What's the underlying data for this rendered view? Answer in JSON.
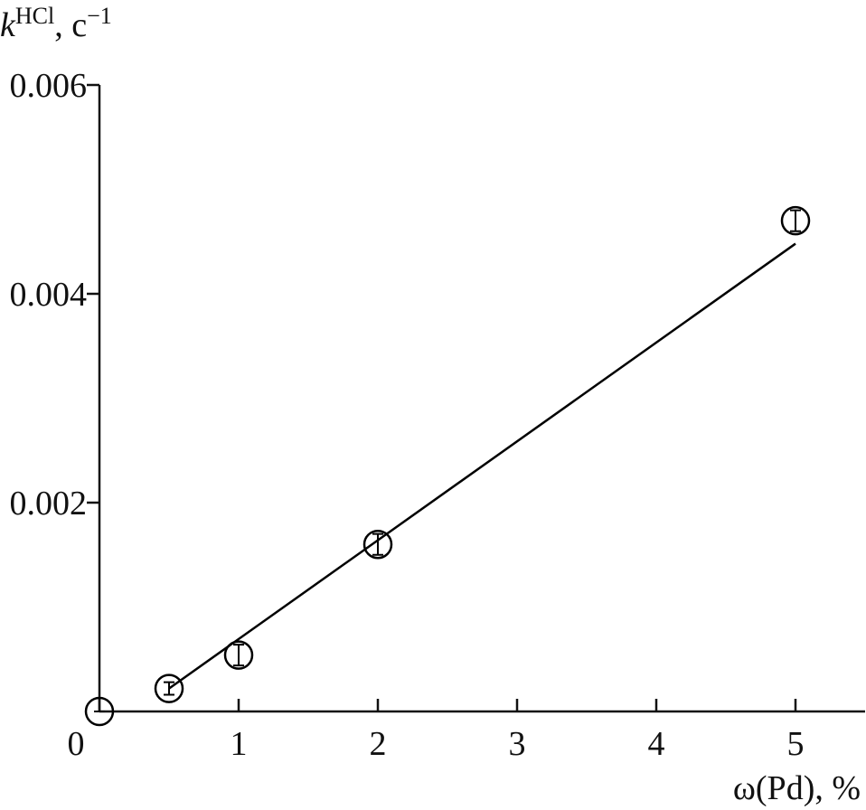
{
  "chart_data": {
    "type": "scatter",
    "y_label": [
      "k",
      "HCl",
      ", c",
      "−1"
    ],
    "x_label": "ω(Pd), %",
    "series": [
      {
        "color": "#000000",
        "x": [
          0,
          0.5,
          1,
          2,
          5
        ],
        "values": [
          0,
          0.00022,
          0.00054,
          0.0016,
          0.0047
        ],
        "errors": [
          0,
          6e-05,
          0.0001,
          0.0001,
          0.0001
        ]
      }
    ],
    "fit": {
      "x": [
        0.5,
        5
      ],
      "values": [
        0.00022,
        0.00448
      ],
      "color": "#000000"
    },
    "xlim": [
      0,
      5.5
    ],
    "ylim": [
      0,
      0.006
    ],
    "xticks": [
      0,
      1,
      2,
      3,
      4,
      5
    ],
    "yticks": [
      0.002,
      0.004,
      0.006
    ]
  }
}
